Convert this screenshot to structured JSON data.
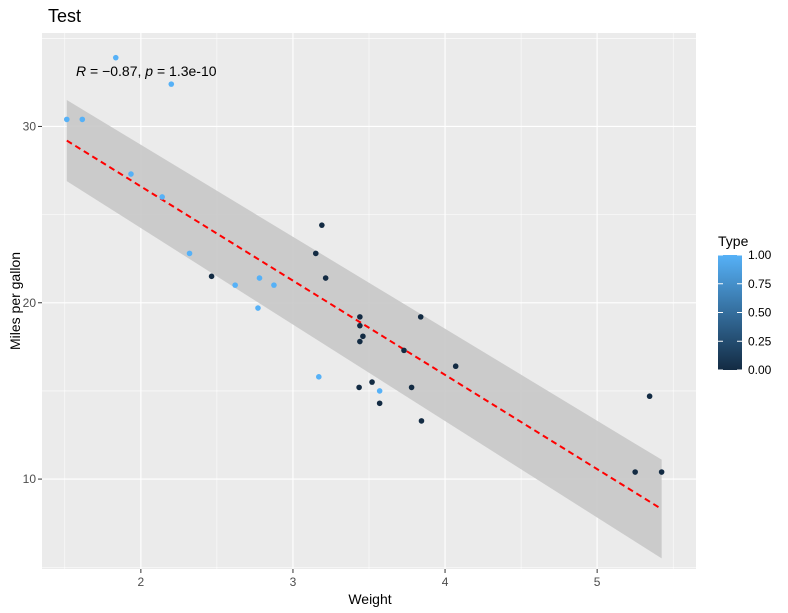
{
  "chart_data": {
    "type": "scatter",
    "title": "Test",
    "xlabel": "Weight",
    "ylabel": "Miles per gallon",
    "xlim": [
      1.35,
      5.65
    ],
    "ylim": [
      4.9,
      35.3
    ],
    "x_ticks": [
      2,
      3,
      4,
      5
    ],
    "y_ticks": [
      10,
      20,
      30
    ],
    "grid": true,
    "annotation": {
      "r_label": "R",
      "r_value": " = −0.87, ",
      "p_label": "p",
      "p_value": " = 1.3e-10"
    },
    "legend": {
      "title": "Type",
      "placement": "right",
      "ticks": [
        "0.00",
        "0.25",
        "0.50",
        "0.75",
        "1.00"
      ],
      "low_color": "#132B43",
      "high_color": "#56B1F7"
    },
    "regression": {
      "x": [
        1.513,
        5.424
      ],
      "y": [
        29.2,
        8.3
      ],
      "band_upper": [
        31.5,
        11.1
      ],
      "band_lower": [
        26.9,
        5.5
      ],
      "color": "#FF0000",
      "band_color": "#C8C8C8"
    },
    "points": [
      {
        "x": 1.513,
        "y": 30.4,
        "type": 1
      },
      {
        "x": 1.615,
        "y": 30.4,
        "type": 1
      },
      {
        "x": 1.835,
        "y": 33.9,
        "type": 1
      },
      {
        "x": 1.935,
        "y": 27.3,
        "type": 1
      },
      {
        "x": 2.14,
        "y": 26.0,
        "type": 1
      },
      {
        "x": 2.2,
        "y": 32.4,
        "type": 1
      },
      {
        "x": 2.32,
        "y": 22.8,
        "type": 1
      },
      {
        "x": 2.465,
        "y": 21.5,
        "type": 0
      },
      {
        "x": 2.62,
        "y": 21.0,
        "type": 1
      },
      {
        "x": 2.77,
        "y": 19.7,
        "type": 1
      },
      {
        "x": 2.78,
        "y": 21.4,
        "type": 1
      },
      {
        "x": 2.875,
        "y": 21.0,
        "type": 1
      },
      {
        "x": 3.15,
        "y": 22.8,
        "type": 0
      },
      {
        "x": 3.17,
        "y": 15.8,
        "type": 1
      },
      {
        "x": 3.19,
        "y": 24.4,
        "type": 0
      },
      {
        "x": 3.215,
        "y": 21.4,
        "type": 0
      },
      {
        "x": 3.435,
        "y": 15.2,
        "type": 0
      },
      {
        "x": 3.44,
        "y": 18.7,
        "type": 0
      },
      {
        "x": 3.44,
        "y": 19.2,
        "type": 0
      },
      {
        "x": 3.44,
        "y": 17.8,
        "type": 0
      },
      {
        "x": 3.46,
        "y": 18.1,
        "type": 0
      },
      {
        "x": 3.52,
        "y": 15.5,
        "type": 0
      },
      {
        "x": 3.57,
        "y": 15.0,
        "type": 1
      },
      {
        "x": 3.57,
        "y": 14.3,
        "type": 0
      },
      {
        "x": 3.73,
        "y": 17.3,
        "type": 0
      },
      {
        "x": 3.78,
        "y": 15.2,
        "type": 0
      },
      {
        "x": 3.84,
        "y": 19.2,
        "type": 0
      },
      {
        "x": 3.845,
        "y": 13.3,
        "type": 0
      },
      {
        "x": 4.07,
        "y": 16.4,
        "type": 0
      },
      {
        "x": 5.25,
        "y": 10.4,
        "type": 0
      },
      {
        "x": 5.345,
        "y": 14.7,
        "type": 0
      },
      {
        "x": 5.424,
        "y": 10.4,
        "type": 0
      }
    ]
  }
}
